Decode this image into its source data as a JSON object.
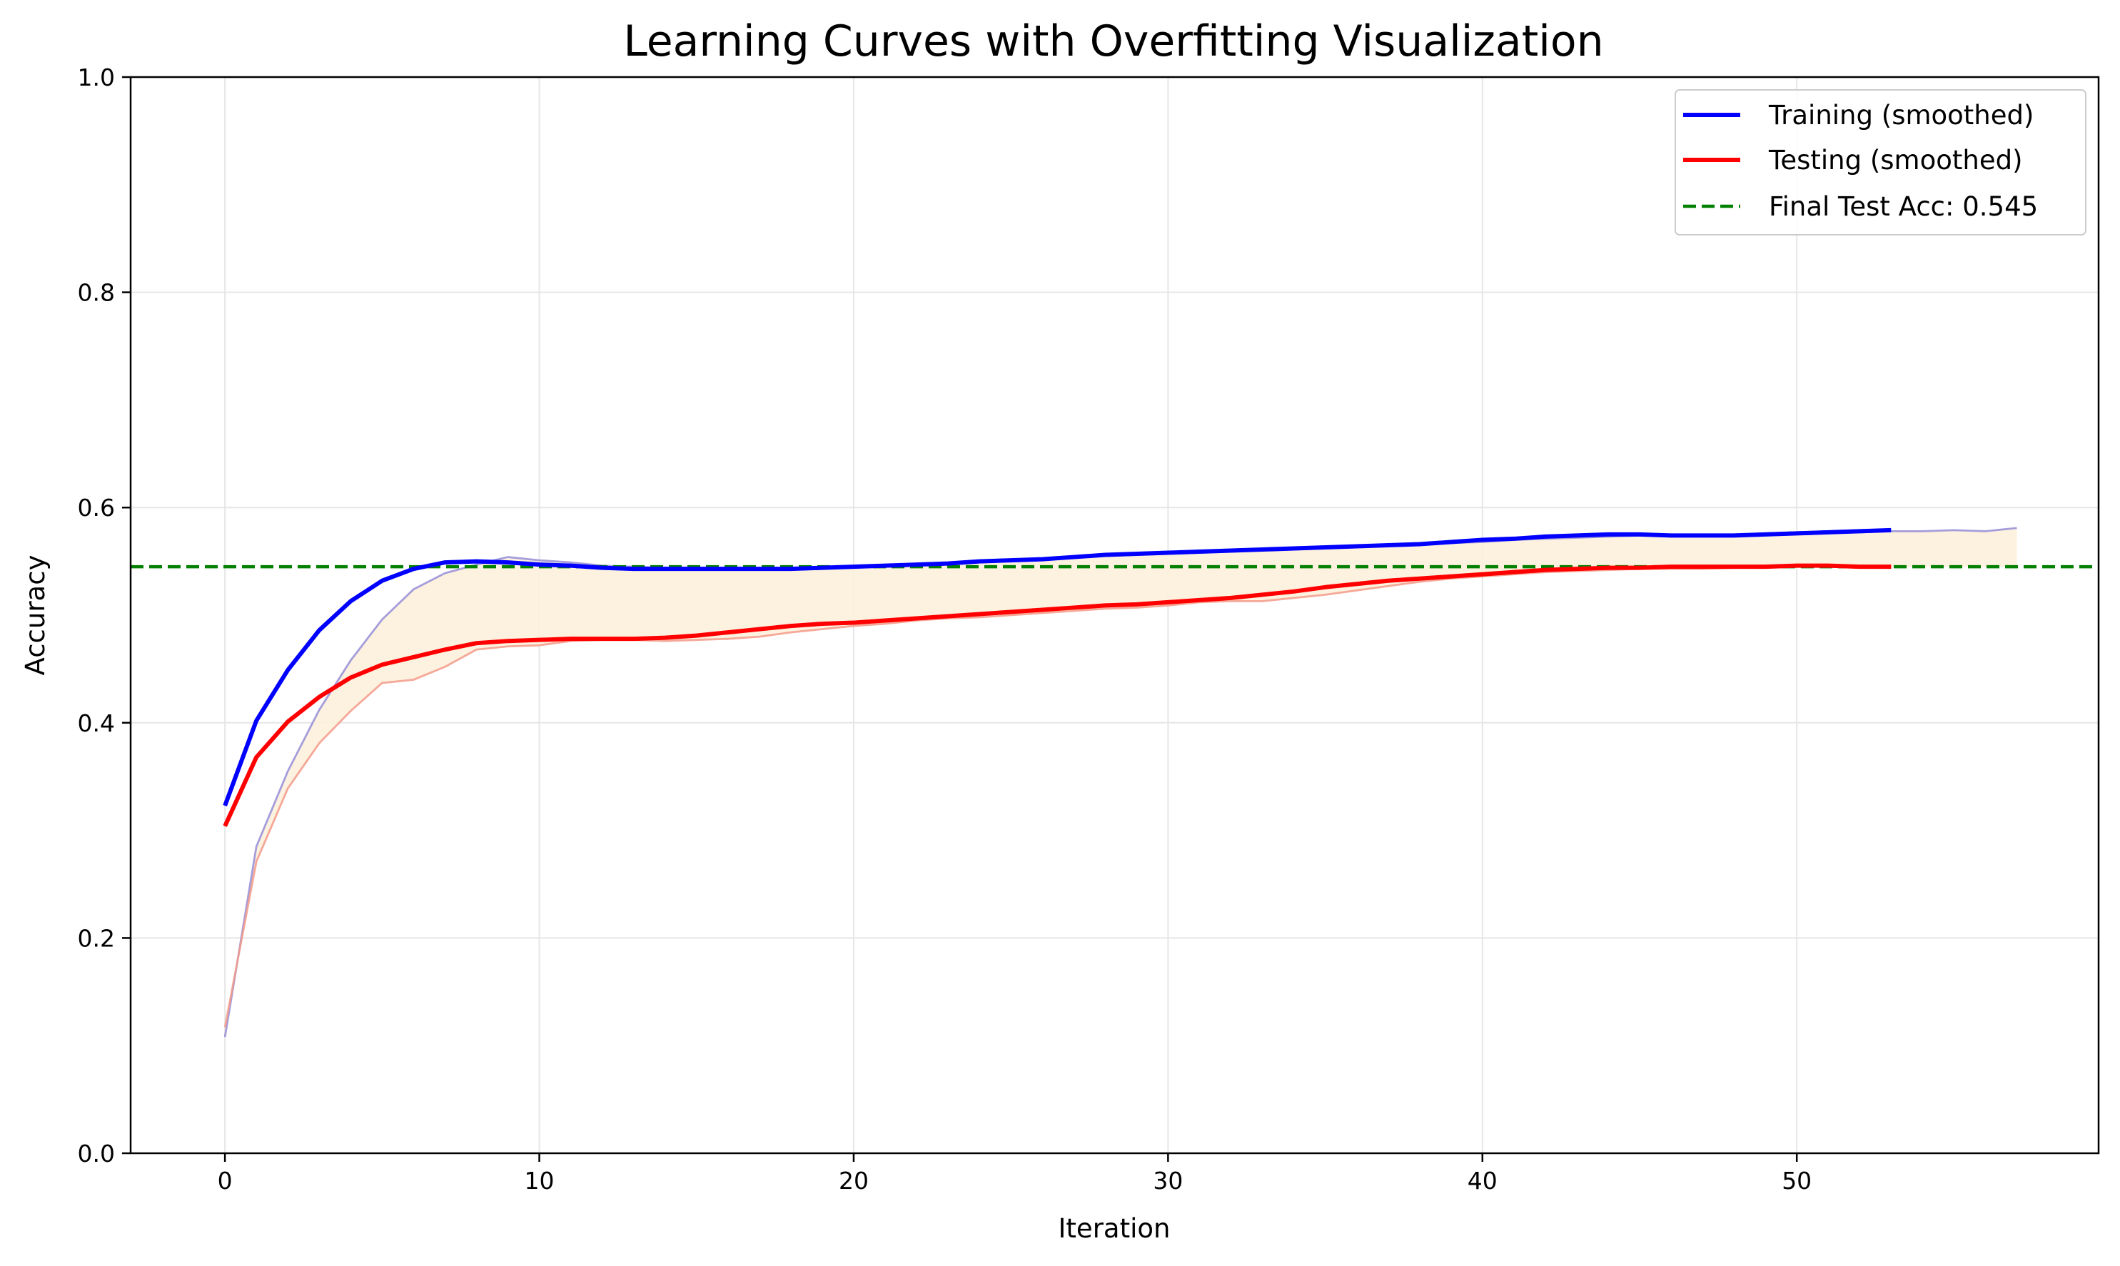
{
  "chart_data": {
    "type": "line",
    "title": "Learning Curves with Overfitting Visualization",
    "xlabel": "Iteration",
    "ylabel": "Accuracy",
    "xlim": [
      -3,
      59.6
    ],
    "ylim": [
      0,
      1.0
    ],
    "xticks": [
      "0",
      "10",
      "20",
      "30",
      "40",
      "50"
    ],
    "yticks": [
      "0.0",
      "0.2",
      "0.4",
      "0.6",
      "0.8",
      "1.0"
    ],
    "grid": true,
    "legend_position": "top-right",
    "legend": [
      "Training (smoothed)",
      "Testing (smoothed)",
      "Final Test Acc: 0.545"
    ],
    "colors": {
      "training": "#0000ff",
      "testing": "#ff0000",
      "training_raw": "#8f87d6",
      "testing_raw": "#f39a88",
      "fill": "#fdf0dc",
      "final_line": "#008000"
    },
    "final_test_acc": 0.545,
    "series": [
      {
        "name": "Training (smoothed)",
        "x": [
          0,
          1,
          2,
          3,
          4,
          5,
          6,
          7,
          8,
          9,
          10,
          11,
          12,
          13,
          14,
          15,
          16,
          17,
          18,
          19,
          20,
          21,
          22,
          23,
          24,
          25,
          26,
          27,
          28,
          29,
          30,
          31,
          32,
          33,
          34,
          35,
          36,
          37,
          38,
          39,
          40,
          41,
          42,
          43,
          44,
          45,
          46,
          47,
          48,
          49,
          50,
          51,
          52,
          53
        ],
        "values": [
          0.323,
          0.402,
          0.449,
          0.486,
          0.513,
          0.532,
          0.543,
          0.549,
          0.55,
          0.549,
          0.547,
          0.546,
          0.544,
          0.543,
          0.543,
          0.543,
          0.543,
          0.543,
          0.543,
          0.544,
          0.545,
          0.546,
          0.547,
          0.548,
          0.55,
          0.551,
          0.552,
          0.554,
          0.556,
          0.557,
          0.558,
          0.559,
          0.56,
          0.561,
          0.562,
          0.563,
          0.564,
          0.565,
          0.566,
          0.568,
          0.57,
          0.571,
          0.573,
          0.574,
          0.575,
          0.575,
          0.574,
          0.574,
          0.574,
          0.575,
          0.576,
          0.577,
          0.578,
          0.579
        ]
      },
      {
        "name": "Testing (smoothed)",
        "x": [
          0,
          1,
          2,
          3,
          4,
          5,
          6,
          7,
          8,
          9,
          10,
          11,
          12,
          13,
          14,
          15,
          16,
          17,
          18,
          19,
          20,
          21,
          22,
          23,
          24,
          25,
          26,
          27,
          28,
          29,
          30,
          31,
          32,
          33,
          34,
          35,
          36,
          37,
          38,
          39,
          40,
          41,
          42,
          43,
          44,
          45,
          46,
          47,
          48,
          49,
          50,
          51,
          52,
          53
        ],
        "values": [
          0.304,
          0.368,
          0.401,
          0.424,
          0.442,
          0.454,
          0.461,
          0.468,
          0.474,
          0.476,
          0.477,
          0.478,
          0.478,
          0.478,
          0.479,
          0.481,
          0.484,
          0.487,
          0.49,
          0.492,
          0.493,
          0.495,
          0.497,
          0.499,
          0.501,
          0.503,
          0.505,
          0.507,
          0.509,
          0.51,
          0.512,
          0.514,
          0.516,
          0.519,
          0.522,
          0.526,
          0.529,
          0.532,
          0.534,
          0.536,
          0.538,
          0.54,
          0.542,
          0.543,
          0.544,
          0.544,
          0.545,
          0.545,
          0.545,
          0.545,
          0.546,
          0.546,
          0.545,
          0.545
        ]
      },
      {
        "x": [
          0,
          1,
          2,
          3,
          4,
          5,
          6,
          7,
          8,
          9,
          10,
          11,
          12,
          13,
          14,
          15,
          16,
          17,
          18,
          19,
          20,
          21,
          22,
          23,
          24,
          25,
          26,
          27,
          28,
          29,
          30,
          31,
          32,
          33,
          34,
          35,
          36,
          37,
          38,
          39,
          40,
          41,
          42,
          43,
          44,
          45,
          46,
          47,
          48,
          49,
          50,
          51,
          52,
          53,
          54,
          55,
          56,
          57
        ],
        "values": [
          0.108,
          0.285,
          0.355,
          0.412,
          0.458,
          0.496,
          0.524,
          0.539,
          0.547,
          0.554,
          0.551,
          0.549,
          0.546,
          0.545,
          0.544,
          0.544,
          0.543,
          0.542,
          0.543,
          0.544,
          0.545,
          0.546,
          0.547,
          0.548,
          0.549,
          0.551,
          0.552,
          0.553,
          0.555,
          0.556,
          0.557,
          0.558,
          0.559,
          0.56,
          0.561,
          0.562,
          0.563,
          0.565,
          0.566,
          0.567,
          0.568,
          0.57,
          0.571,
          0.572,
          0.573,
          0.574,
          0.574,
          0.574,
          0.575,
          0.576,
          0.577,
          0.578,
          0.577,
          0.578,
          0.578,
          0.579,
          0.578,
          0.581
        ]
      },
      {
        "x": [
          0,
          1,
          2,
          3,
          4,
          5,
          6,
          7,
          8,
          9,
          10,
          11,
          12,
          13,
          14,
          15,
          16,
          17,
          18,
          19,
          20,
          21,
          22,
          23,
          24,
          25,
          26,
          27,
          28,
          29,
          30,
          31,
          32,
          33,
          34,
          35,
          36,
          37,
          38,
          39,
          40,
          41,
          42,
          43,
          44,
          45,
          46,
          47,
          48,
          49,
          50,
          51,
          52,
          53
        ],
        "values": [
          0.117,
          0.271,
          0.339,
          0.381,
          0.411,
          0.437,
          0.44,
          0.452,
          0.468,
          0.471,
          0.472,
          0.476,
          0.477,
          0.477,
          0.476,
          0.477,
          0.478,
          0.48,
          0.484,
          0.487,
          0.49,
          0.492,
          0.495,
          0.497,
          0.498,
          0.5,
          0.502,
          0.504,
          0.506,
          0.507,
          0.509,
          0.512,
          0.513,
          0.513,
          0.516,
          0.519,
          0.523,
          0.527,
          0.531,
          0.534,
          0.536,
          0.538,
          0.54,
          0.541,
          0.542,
          0.543,
          0.543,
          0.543,
          0.544,
          0.544,
          0.545,
          0.545,
          0.544,
          0.544
        ]
      }
    ]
  }
}
